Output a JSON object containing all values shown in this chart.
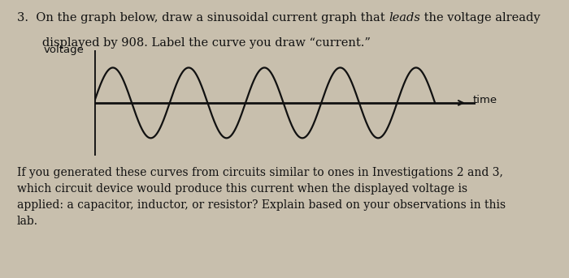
{
  "ylabel": "voltage",
  "xlabel": "time",
  "body_text": "If you generated these curves from circuits similar to ones in Investigations 2 and 3,\nwhich circuit device would produce this current when the displayed voltage is\napplied: a capacitor, inductor, or resistor? Explain based on your observations in this\nlab.",
  "num_cycles": 4.5,
  "amplitude": 1.0,
  "background_color": "#c8bfad",
  "wave_color": "#111111",
  "axes_color": "#111111",
  "font_size_title": 10.5,
  "font_size_body": 10.0,
  "font_size_axis_label": 9.5,
  "graph_xlim": [
    0,
    9.5
  ],
  "graph_ylim": [
    -1.5,
    1.5
  ],
  "phase_shift": 0.0,
  "title_line1_normal1": "3.  On the graph below, draw a sinusoidal current graph that ",
  "title_line1_italic": "leads",
  "title_line1_normal2": " the voltage already",
  "title_line2": "   displayed by 908. Label the curve you draw “current.”"
}
